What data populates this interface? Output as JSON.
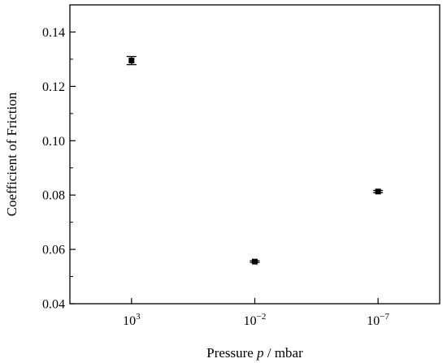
{
  "chart_data": {
    "type": "scatter",
    "title": "",
    "xlabel": "Pressure p / mbar",
    "xlabel_parts": {
      "prefix": "Pressure ",
      "variable": "p",
      "suffix": " / mbar"
    },
    "ylabel": "Coefficient of Friction",
    "categories": [
      {
        "base": "10",
        "exp": "3"
      },
      {
        "base": "10",
        "exp": "−2"
      },
      {
        "base": "10",
        "exp": "−7"
      }
    ],
    "ylim": [
      0.04,
      0.15
    ],
    "yticks": [
      0.04,
      0.06,
      0.08,
      0.1,
      0.12,
      0.14
    ],
    "ytick_labels": [
      "0.04",
      "0.06",
      "0.08",
      "0.10",
      "0.12",
      "0.14"
    ],
    "grid": false,
    "legend": "none",
    "series": [
      {
        "values": [
          0.1295,
          0.0555,
          0.0813
        ],
        "errors": [
          0.0015,
          0.0003,
          0.0004
        ]
      }
    ],
    "marker_color": "#000000"
  }
}
